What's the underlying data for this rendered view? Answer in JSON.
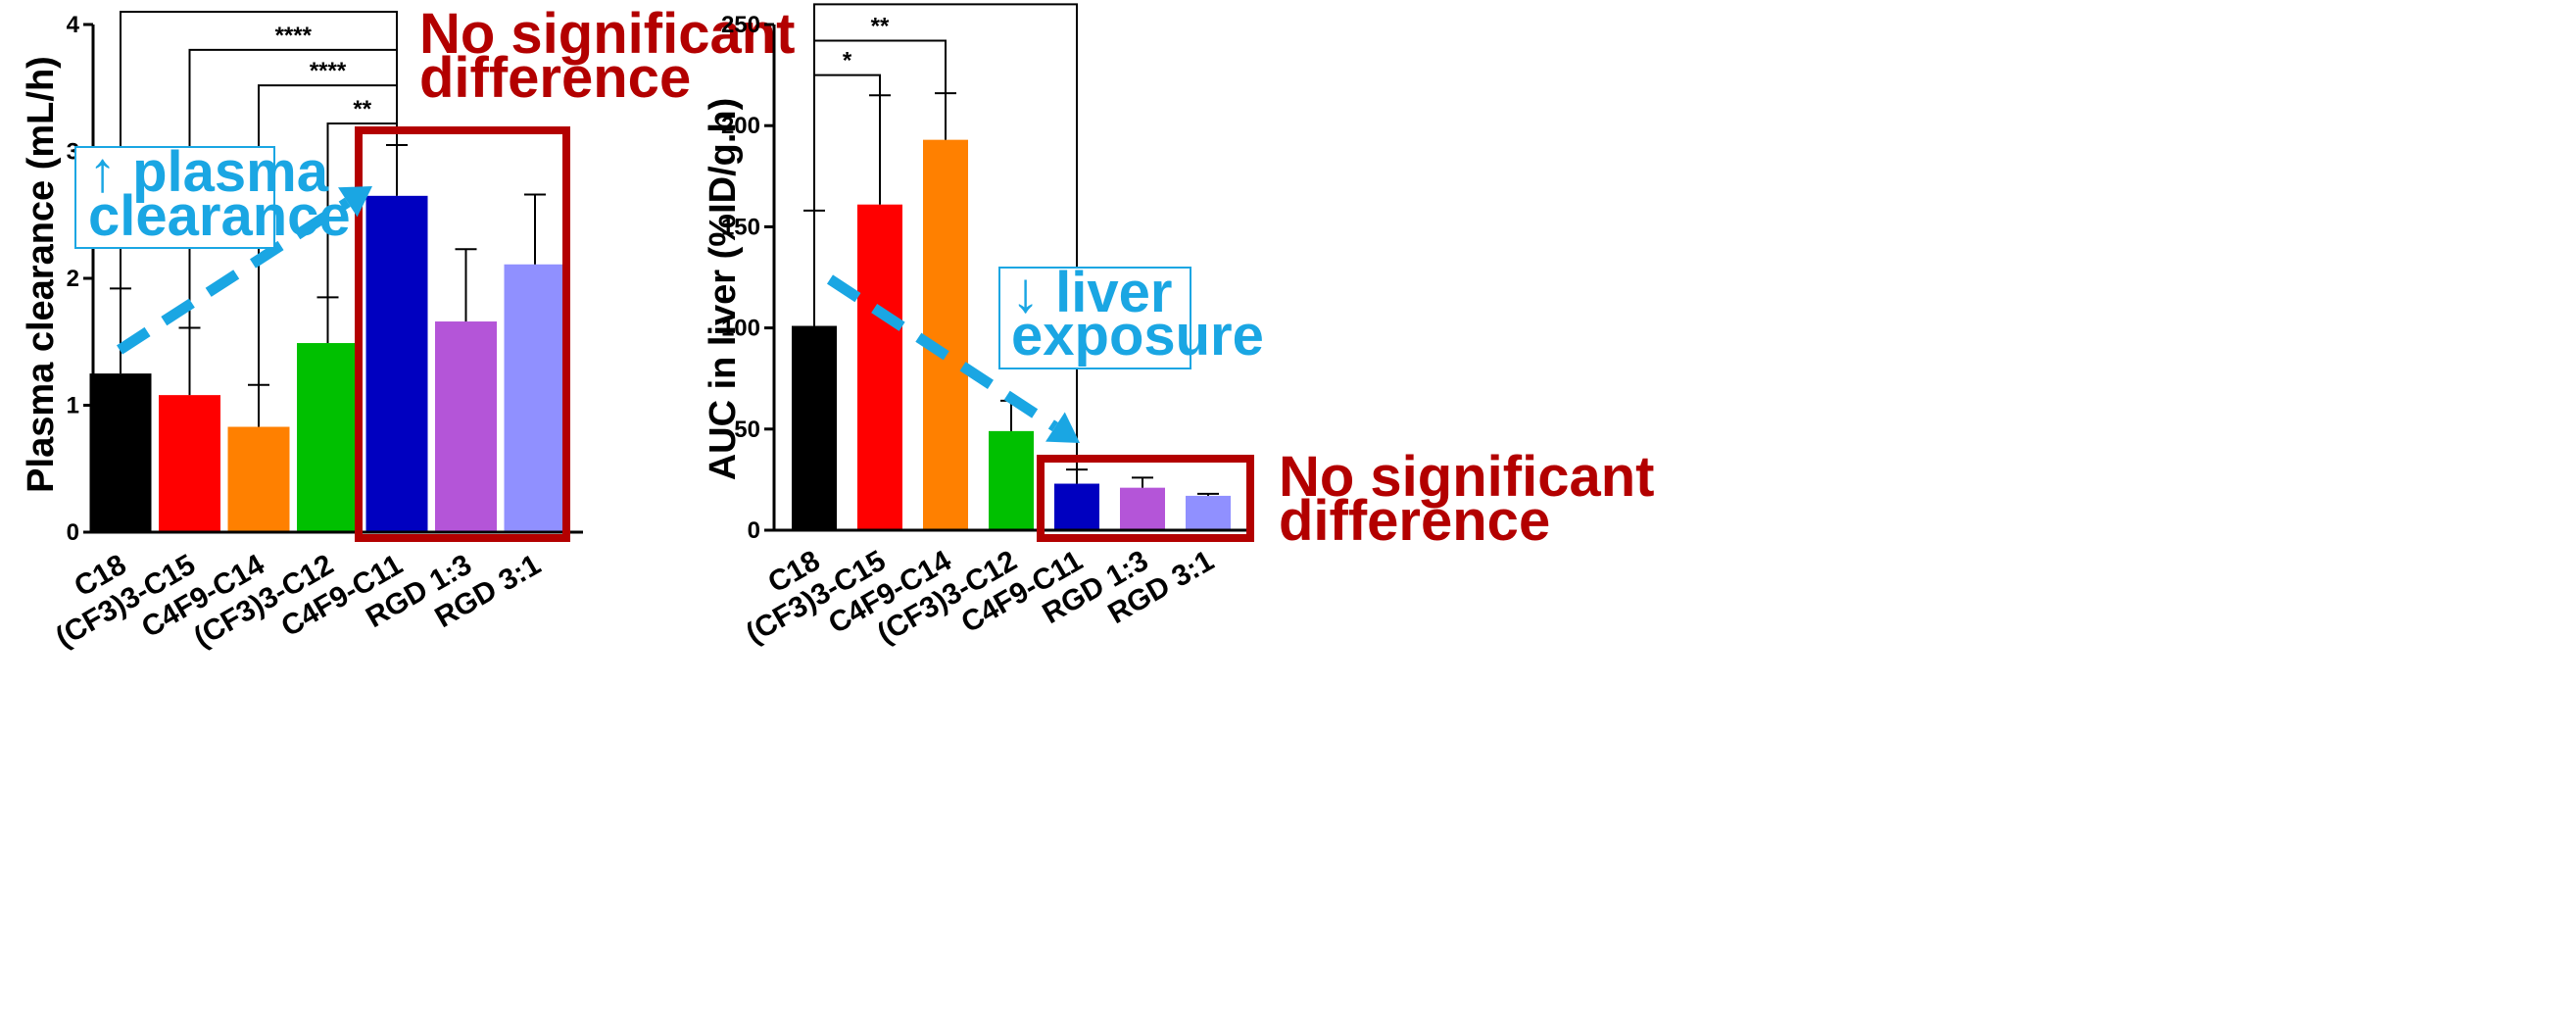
{
  "colors": {
    "callout_blue": "#1aa6e3",
    "callout_red": "#b30000",
    "axis": "#000000"
  },
  "chart_data": [
    {
      "type": "bar",
      "title": "",
      "xlabel": "",
      "ylabel": "Plasma clearance (mL/h)",
      "ylim": [
        0,
        4
      ],
      "yticks": [
        "0",
        "1",
        "2",
        "3",
        "4"
      ],
      "categories": [
        "C18",
        "(CF3)3-C15",
        "C4F9-C14",
        "(CF3)3-C12",
        "C4F9-C11",
        "RGD 1:3",
        "RGD 3:1"
      ],
      "values": [
        1.25,
        1.08,
        0.83,
        1.49,
        2.65,
        1.66,
        2.11
      ],
      "errors": [
        0.67,
        0.53,
        0.33,
        0.36,
        0.4,
        0.57,
        0.55
      ],
      "bar_colors": [
        "#000000",
        "#ff0000",
        "#ff8000",
        "#00c000",
        "#0000c0",
        "#b455d8",
        "#9090ff"
      ],
      "significance": [
        {
          "from": "C18",
          "to": "C4F9-C11",
          "label": "***",
          "level": 4.1
        },
        {
          "from": "(CF3)3-C15",
          "to": "C4F9-C11",
          "label": "****",
          "level": 3.8
        },
        {
          "from": "C4F9-C14",
          "to": "C4F9-C11",
          "label": "****",
          "level": 3.52
        },
        {
          "from": "(CF3)3-C12",
          "to": "C4F9-C11",
          "label": "**",
          "level": 3.22
        }
      ],
      "annotations": {
        "trend": [
          "↑ plasma",
          "clearance"
        ],
        "highlight": [
          "No significant",
          "difference"
        ]
      }
    },
    {
      "type": "bar",
      "title": "",
      "xlabel": "",
      "ylabel": "AUC in liver (%ID/g.h)",
      "ylim": [
        0,
        250
      ],
      "yticks": [
        "0",
        "50",
        "100",
        "150",
        "200",
        "250"
      ],
      "categories": [
        "C18",
        "(CF3)3-C15",
        "C4F9-C14",
        "(CF3)3-C12",
        "C4F9-C11",
        "RGD 1:3",
        "RGD 3:1"
      ],
      "values": [
        101,
        161,
        193,
        49,
        23,
        21,
        17
      ],
      "errors": [
        57,
        54,
        23,
        15,
        7,
        5,
        1
      ],
      "bar_colors": [
        "#000000",
        "#ff0000",
        "#ff8000",
        "#00c000",
        "#0000c0",
        "#b455d8",
        "#9090ff"
      ],
      "significance": [
        {
          "from": "C18",
          "to": "C4F9-C11",
          "label": "**",
          "level": 260
        },
        {
          "from": "C18",
          "to": "C4F9-C14",
          "label": "**",
          "level": 242
        },
        {
          "from": "C18",
          "to": "(CF3)3-C15",
          "label": "*",
          "level": 225
        }
      ],
      "annotations": {
        "trend": [
          "↓ liver",
          "exposure"
        ],
        "highlight": [
          "No significant",
          "difference"
        ]
      }
    }
  ]
}
